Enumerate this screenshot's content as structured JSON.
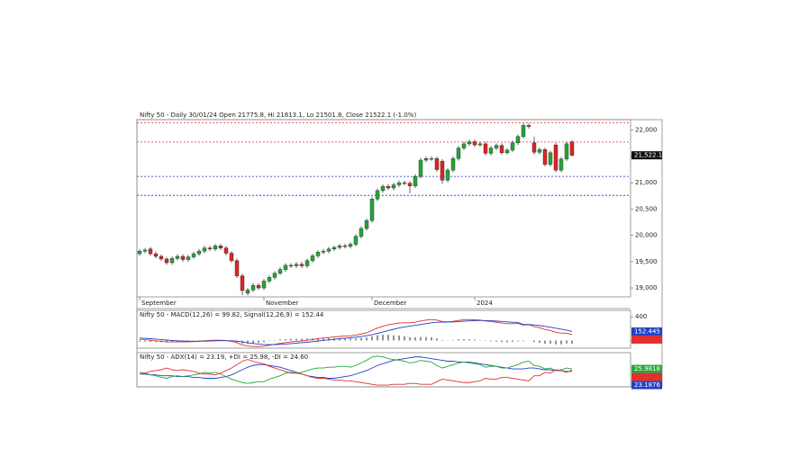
{
  "chart_data": [
    {
      "type": "candlestick",
      "title": "Nifty 50 - Daily 30/01/24 Open 21775.8, Hi 21813.1, Lo 21501.8, Close 21522.1 (-1.0%)",
      "categories": [
        "September",
        null,
        null,
        null,
        null,
        null,
        null,
        null,
        null,
        null,
        null,
        null,
        null,
        null,
        null,
        null,
        null,
        null,
        null,
        null,
        null,
        null,
        null,
        "November",
        null,
        null,
        null,
        null,
        null,
        null,
        null,
        null,
        null,
        null,
        null,
        null,
        null,
        null,
        null,
        null,
        null,
        null,
        null,
        "December",
        null,
        null,
        null,
        null,
        null,
        null,
        null,
        null,
        null,
        null,
        null,
        null,
        null,
        null,
        null,
        null,
        null,
        null,
        "2024",
        null,
        null,
        null,
        null,
        null,
        null,
        null,
        null,
        null,
        null,
        null,
        null,
        null,
        null,
        null,
        null,
        null,
        null
      ],
      "open": [
        19650,
        19700,
        19740,
        19650,
        19600,
        19550,
        19480,
        19560,
        19600,
        19540,
        19590,
        19650,
        19700,
        19760,
        19740,
        19800,
        19760,
        19660,
        19520,
        19230,
        18900,
        18960,
        19050,
        19000,
        19130,
        19200,
        19280,
        19350,
        19430,
        19420,
        19450,
        19420,
        19520,
        19610,
        19680,
        19700,
        19740,
        19770,
        19800,
        19790,
        19830,
        19980,
        20130,
        20280,
        20690,
        20850,
        20930,
        20900,
        20960,
        21000,
        20990,
        20940,
        21120,
        21430,
        21460,
        21460,
        21410,
        21050,
        21240,
        21460,
        21660,
        21740,
        21780,
        21720,
        21740,
        21560,
        21660,
        21710,
        21570,
        21620,
        21760,
        21880,
        22090,
        21760,
        21580,
        21630,
        21350,
        21720,
        21240,
        21450,
        21775.8
      ],
      "high": [
        19740,
        19760,
        19780,
        19690,
        19640,
        19590,
        19600,
        19640,
        19640,
        19630,
        19690,
        19740,
        19800,
        19800,
        19840,
        19840,
        19800,
        19700,
        19560,
        19270,
        19000,
        19090,
        19090,
        19170,
        19240,
        19320,
        19390,
        19470,
        19470,
        19490,
        19490,
        19560,
        19650,
        19720,
        19740,
        19780,
        19810,
        19840,
        19840,
        19870,
        20020,
        20170,
        20320,
        20730,
        20890,
        20970,
        20970,
        21000,
        21040,
        21040,
        21030,
        21160,
        21470,
        21500,
        21500,
        21500,
        21450,
        21280,
        21500,
        21700,
        21780,
        21820,
        21820,
        21780,
        21780,
        21700,
        21750,
        21750,
        21660,
        21800,
        21920,
        22130,
        22130,
        21880,
        21670,
        21670,
        21610,
        21760,
        21490,
        21780,
        21813.1
      ],
      "low": [
        19610,
        19660,
        19610,
        19560,
        19510,
        19440,
        19440,
        19520,
        19500,
        19500,
        19550,
        19610,
        19660,
        19700,
        19700,
        19720,
        19620,
        19480,
        19190,
        18860,
        18860,
        18920,
        18960,
        18960,
        19090,
        19160,
        19240,
        19310,
        19380,
        19380,
        19380,
        19380,
        19480,
        19570,
        19640,
        19660,
        19700,
        19730,
        19750,
        19750,
        19790,
        19940,
        20090,
        20240,
        20650,
        20810,
        20860,
        20860,
        20920,
        20950,
        20800,
        20900,
        21080,
        21390,
        21420,
        21210,
        20980,
        21010,
        21200,
        21420,
        21620,
        21700,
        21680,
        21680,
        21520,
        21520,
        21620,
        21530,
        21530,
        21580,
        21720,
        21840,
        22030,
        21540,
        21540,
        21310,
        21310,
        21200,
        21200,
        21410,
        21501.8
      ],
      "close": [
        19700,
        19720,
        19650,
        19600,
        19550,
        19480,
        19560,
        19600,
        19540,
        19590,
        19650,
        19700,
        19760,
        19740,
        19800,
        19760,
        19660,
        19520,
        19230,
        18950,
        18960,
        19050,
        19000,
        19130,
        19200,
        19280,
        19350,
        19430,
        19420,
        19450,
        19420,
        19520,
        19610,
        19680,
        19700,
        19740,
        19770,
        19800,
        19790,
        19830,
        19980,
        20130,
        20280,
        20690,
        20850,
        20930,
        20900,
        20960,
        21000,
        20990,
        20940,
        21120,
        21430,
        21460,
        21460,
        21250,
        21050,
        21240,
        21460,
        21660,
        21740,
        21780,
        21720,
        21740,
        21560,
        21660,
        21710,
        21570,
        21620,
        21760,
        21880,
        22090,
        22070,
        21580,
        21630,
        21350,
        21570,
        21240,
        21450,
        21740,
        21522.1
      ],
      "up_color": "#22a83a",
      "down_color": "#e02424",
      "ylim": [
        18830,
        22200
      ],
      "yticks": [
        {
          "value": 19000,
          "label": "19,000"
        },
        {
          "value": 19500,
          "label": "19,500"
        },
        {
          "value": 20000,
          "label": "20,000"
        },
        {
          "value": 20500,
          "label": "20,500"
        },
        {
          "value": 21000,
          "label": "21,000"
        },
        {
          "value": 21500,
          "label": "21,500"
        },
        {
          "value": 22000,
          "label": "22,000"
        }
      ],
      "hlines": [
        {
          "value": 22140,
          "color": "#e03030"
        },
        {
          "value": 21775,
          "color": "#e03030"
        },
        {
          "value": 21120,
          "color": "#2030c0"
        },
        {
          "value": 20760,
          "color": "#2030c0"
        }
      ],
      "last_value": {
        "value": 21522.1,
        "label": "21,522.1"
      }
    },
    {
      "type": "line",
      "title": "Nifty 50 - MACD(12,26) = 99.82, Signal(12,26,9) = 152.44",
      "series": [
        {
          "color": "#e03030",
          "values": [
            20,
            15,
            5,
            -5,
            -15,
            -25,
            -25,
            -22,
            -25,
            -22,
            -18,
            -12,
            -5,
            0,
            5,
            5,
            -2,
            -15,
            -40,
            -75,
            -95,
            -100,
            -105,
            -95,
            -80,
            -65,
            -50,
            -35,
            -25,
            -15,
            -8,
            5,
            15,
            30,
            40,
            50,
            60,
            68,
            75,
            80,
            90,
            110,
            130,
            170,
            210,
            240,
            265,
            280,
            295,
            300,
            300,
            310,
            330,
            345,
            355,
            345,
            320,
            315,
            325,
            340,
            350,
            355,
            350,
            345,
            330,
            320,
            310,
            295,
            285,
            285,
            290,
            260,
            270,
            235,
            215,
            185,
            170,
            140,
            125,
            125,
            99.82
          ]
        },
        {
          "color": "#2040c8",
          "last_label": "152.445",
          "values": [
            40,
            36,
            30,
            23,
            15,
            7,
            0,
            -5,
            -9,
            -12,
            -13,
            -13,
            -11,
            -9,
            -6,
            -4,
            -3,
            -6,
            -12,
            -25,
            -39,
            -51,
            -62,
            -68,
            -71,
            -70,
            -66,
            -60,
            -53,
            -45,
            -38,
            -29,
            -20,
            -10,
            0,
            10,
            20,
            30,
            39,
            47,
            56,
            67,
            80,
            98,
            120,
            144,
            168,
            190,
            211,
            229,
            243,
            257,
            271,
            286,
            300,
            309,
            311,
            312,
            315,
            320,
            326,
            332,
            336,
            338,
            337,
            334,
            329,
            322,
            315,
            309,
            305,
            271,
            270,
            263,
            253,
            239,
            225,
            208,
            191,
            176,
            152.445
          ]
        }
      ],
      "histogram": {
        "color": "#111111",
        "values": [
          -20,
          -21,
          -25,
          -28,
          -30,
          -32,
          -25,
          -17,
          -16,
          -10,
          -5,
          1,
          6,
          9,
          11,
          9,
          1,
          -9,
          -28,
          -50,
          -56,
          -49,
          -43,
          -27,
          -9,
          5,
          16,
          25,
          28,
          30,
          30,
          34,
          35,
          40,
          40,
          40,
          40,
          38,
          36,
          33,
          34,
          43,
          50,
          72,
          90,
          96,
          97,
          90,
          84,
          71,
          57,
          53,
          59,
          59,
          55,
          36,
          9,
          3,
          10,
          20,
          24,
          23,
          14,
          7,
          -7,
          -14,
          -19,
          -27,
          -30,
          -24,
          -15,
          -11,
          0,
          -28,
          -38,
          -54,
          -55,
          -68,
          -66,
          -51,
          -53
        ]
      },
      "ylim": [
        -130,
        510
      ],
      "yticks": [
        0,
        400
      ]
    },
    {
      "type": "line",
      "title": "Nifty 50 - ADX(14) = 23.19, +DI = 25.98, -DI = 24.60",
      "series": [
        {
          "color": "#2040c8",
          "last_label": "23.1876",
          "values": [
            20,
            20,
            19,
            19,
            18,
            18,
            18,
            17,
            17,
            17,
            16,
            16,
            15,
            15,
            15,
            16,
            17,
            19,
            22,
            25,
            28,
            30,
            31,
            31,
            30,
            29,
            28,
            26,
            24,
            22,
            20,
            18,
            17,
            16,
            16,
            15,
            15,
            16,
            17,
            18,
            20,
            22,
            24,
            27,
            30,
            32,
            34,
            36,
            37,
            38,
            39,
            40,
            40,
            39,
            38,
            37,
            36,
            35,
            35,
            34,
            34,
            34,
            33,
            32,
            31,
            30,
            29,
            28,
            27,
            26,
            26,
            26,
            27,
            27,
            26,
            25,
            25,
            24,
            24,
            23,
            23.1876
          ]
        },
        {
          "color": "#22a83a",
          "last_label": "25.9818",
          "values": [
            20,
            21,
            19,
            18,
            16,
            15,
            17,
            18,
            17,
            18,
            19,
            20,
            22,
            21,
            22,
            20,
            17,
            14,
            12,
            10,
            9,
            10,
            11,
            11,
            14,
            16,
            18,
            21,
            22,
            21,
            22,
            24,
            26,
            27,
            27,
            28,
            28,
            29,
            29,
            28,
            30,
            33,
            36,
            40,
            41,
            40,
            38,
            37,
            36,
            35,
            33,
            34,
            36,
            35,
            34,
            30,
            27,
            29,
            31,
            33,
            34,
            33,
            32,
            31,
            28,
            29,
            29,
            27,
            27,
            29,
            31,
            34,
            35,
            30,
            29,
            26,
            27,
            24,
            25,
            27,
            25.9818
          ]
        },
        {
          "color": "#e03030",
          "values": [
            22,
            21,
            23,
            24,
            25,
            27,
            25,
            24,
            25,
            24,
            23,
            21,
            20,
            20,
            19,
            21,
            24,
            27,
            31,
            35,
            37,
            35,
            33,
            32,
            29,
            27,
            25,
            23,
            21,
            21,
            20,
            18,
            16,
            15,
            15,
            14,
            13,
            13,
            12,
            12,
            11,
            10,
            9,
            8,
            7,
            7,
            7,
            8,
            8,
            8,
            9,
            9,
            8,
            8,
            8,
            11,
            14,
            13,
            12,
            11,
            10,
            10,
            11,
            12,
            15,
            14,
            14,
            16,
            16,
            15,
            14,
            13,
            12,
            18,
            18,
            22,
            21,
            25,
            24,
            22,
            24.6
          ]
        }
      ],
      "ylim": [
        5,
        45
      ]
    }
  ]
}
